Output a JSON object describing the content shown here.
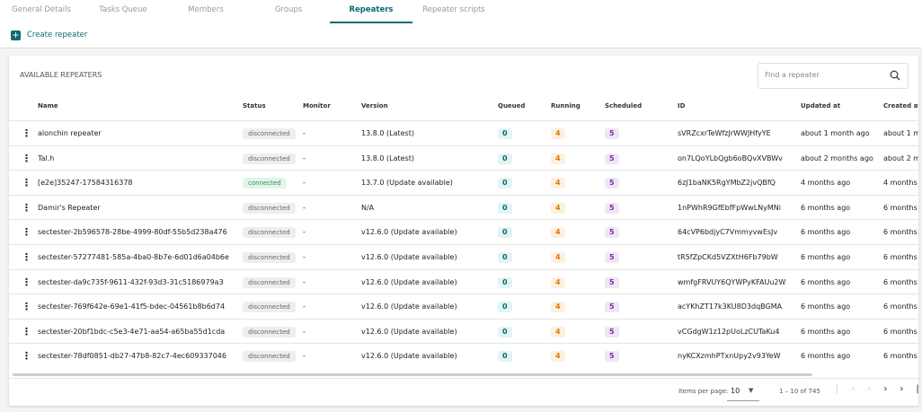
{
  "tabs": [
    "General Details",
    "Tasks Queue",
    "Members",
    "Groups",
    "Repeaters",
    "Repeater scripts"
  ],
  "create_button": "Create repeater",
  "card": {
    "title": "AVAILABLE REPEATERS",
    "search_placeholder": "Find a repeater"
  },
  "table": {
    "columns": [
      "Name",
      "Status",
      "Monitor",
      "Version",
      "Queued",
      "Running",
      "Scheduled",
      "ID",
      "Updated at",
      "Created at"
    ],
    "rows": [
      [
        "alonchin repeater",
        "disconnected",
        "-",
        "13.8.0 (Latest)",
        0,
        4,
        5,
        "sVRZcxrTeWfzJrWWJHfyYE",
        "about 1 month ago",
        "about 1 m"
      ],
      [
        "Tal.h",
        "disconnected",
        "-",
        "13.8.0 (Latest)",
        0,
        4,
        5,
        "on7LQoYLbQgb6oBQvXVBWv",
        "about 2 months ago",
        "about 2 m"
      ],
      [
        "[e2e]35247-17584316378",
        "connected",
        "-",
        "13.7.0 (Update available)",
        0,
        4,
        5,
        "6zJ1baNK5RgYMbZ2jvQBfQ",
        "4 months ago",
        "4 months"
      ],
      [
        "Damir's Repeater",
        "disconnected",
        "-",
        "N/A",
        0,
        4,
        5,
        "1nPWhR9GfEbfFpWwLNyMNi",
        "6 months ago",
        "6 months"
      ],
      [
        "sectester-2b596578-28be-4999-80df-55b5d238a476",
        "disconnected",
        "-",
        "v12.6.0 (Update available)",
        0,
        4,
        5,
        "64cVP6bdjyC7VmmyvwEsJv",
        "6 months ago",
        "6 months"
      ],
      [
        "sectester-57277481-585a-4ba0-8b7e-6d01d6a04b6e",
        "disconnected",
        "-",
        "v12.6.0 (Update available)",
        0,
        4,
        5,
        "tR5fZpCKd5VZXtH6Fb79bW",
        "6 months ago",
        "6 months"
      ],
      [
        "sectester-da9c735f-9611-432f-93d3-31c5186979a3",
        "disconnected",
        "-",
        "v12.6.0 (Update available)",
        0,
        4,
        5,
        "wmfgFRVUY6QYWPyKFAUu2W",
        "6 months ago",
        "6 months"
      ],
      [
        "sectester-769f642e-69e1-41f5-bdec-04561b8b6d74",
        "disconnected",
        "-",
        "v12.6.0 (Update available)",
        0,
        4,
        5,
        "acYKhZT17k3KU8D3dqBGMA",
        "6 months ago",
        "6 months"
      ],
      [
        "sectester-20bf1bdc-c5e3-4e71-aa54-a65ba55d1cda",
        "disconnected",
        "-",
        "v12.6.0 (Update available)",
        0,
        4,
        5,
        "vCGdgW1z12pUoLzCUTaKu4",
        "6 months ago",
        "6 months"
      ],
      [
        "sectester-78df0851-db27-47b8-82c7-4ec609337046",
        "disconnected",
        "-",
        "v12.6.0 (Update available)",
        0,
        4,
        5,
        "nyKCXzmhPTxnUpy2v93YeW",
        "6 months ago",
        "6 months"
      ]
    ]
  },
  "paginator": {
    "label": "Items per page:",
    "page_size": "10",
    "range": "1 – 10 of 745"
  }
}
